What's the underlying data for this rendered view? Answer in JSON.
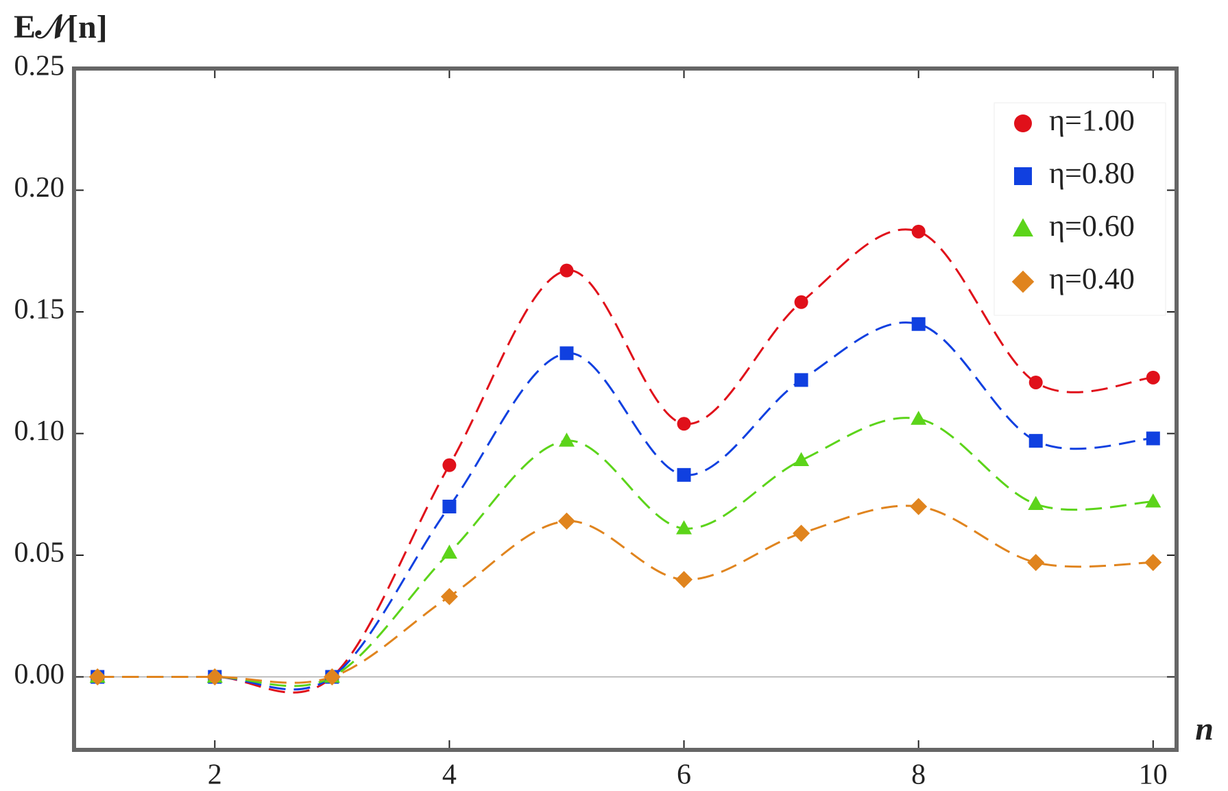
{
  "chart_data": {
    "type": "scatter",
    "x_label": "n",
    "y_label": "E𝒩[n]",
    "x": [
      1,
      2,
      3,
      4,
      5,
      6,
      7,
      8,
      9,
      10
    ],
    "series": [
      {
        "name": "η=1.00",
        "color": "#e0101a",
        "marker": "circle",
        "values": [
          0,
          0,
          0,
          0.087,
          0.167,
          0.104,
          0.154,
          0.183,
          0.121,
          0.123
        ]
      },
      {
        "name": "η=0.80",
        "color": "#1040e0",
        "marker": "square",
        "values": [
          0,
          0,
          0,
          0.07,
          0.133,
          0.083,
          0.122,
          0.145,
          0.097,
          0.098
        ]
      },
      {
        "name": "η=0.60",
        "color": "#5cd41a",
        "marker": "triangle",
        "values": [
          0,
          0,
          0,
          0.051,
          0.097,
          0.061,
          0.089,
          0.106,
          0.071,
          0.072
        ]
      },
      {
        "name": "η=0.40",
        "color": "#e0841e",
        "marker": "diamond",
        "values": [
          0,
          0,
          0,
          0.033,
          0.064,
          0.04,
          0.059,
          0.07,
          0.047,
          0.047
        ]
      }
    ],
    "xlim": [
      0.8,
      10.2
    ],
    "ylim": [
      -0.03,
      0.25
    ],
    "xticks": [
      2,
      4,
      6,
      8,
      10
    ],
    "yticks": [
      {
        "value": 0,
        "label": "0.00"
      },
      {
        "value": 0.05,
        "label": "0.05"
      },
      {
        "value": 0.1,
        "label": "0.10"
      },
      {
        "value": 0.15,
        "label": "0.15"
      },
      {
        "value": 0.2,
        "label": "0.20"
      },
      {
        "value": 0.25,
        "label": "0.25"
      }
    ],
    "legend": "top-right"
  }
}
